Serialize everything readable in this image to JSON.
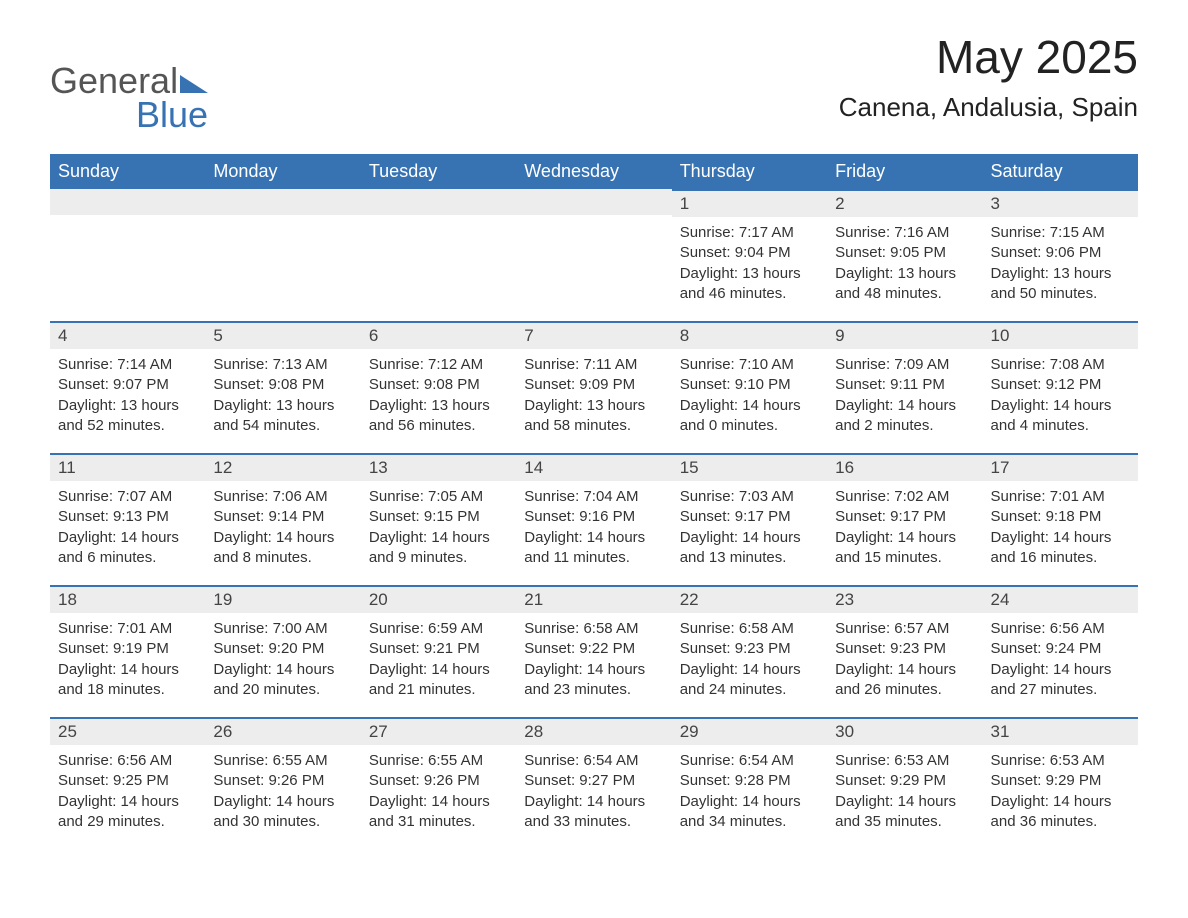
{
  "brand": {
    "word1": "General",
    "word2": "Blue"
  },
  "title": "May 2025",
  "location": "Canena, Andalusia, Spain",
  "colors": {
    "primary": "#3773b3",
    "header_text": "#ffffff",
    "day_bg": "#ededed",
    "body": "#333333"
  },
  "weekdays": [
    "Sunday",
    "Monday",
    "Tuesday",
    "Wednesday",
    "Thursday",
    "Friday",
    "Saturday"
  ],
  "labels": {
    "sunrise": "Sunrise:",
    "sunset": "Sunset:",
    "daylight": "Daylight:"
  },
  "weeks": [
    [
      {
        "blank": true
      },
      {
        "blank": true
      },
      {
        "blank": true
      },
      {
        "blank": true
      },
      {
        "day": "1",
        "sunrise": "7:17 AM",
        "sunset": "9:04 PM",
        "daylight": "13 hours and 46 minutes."
      },
      {
        "day": "2",
        "sunrise": "7:16 AM",
        "sunset": "9:05 PM",
        "daylight": "13 hours and 48 minutes."
      },
      {
        "day": "3",
        "sunrise": "7:15 AM",
        "sunset": "9:06 PM",
        "daylight": "13 hours and 50 minutes."
      }
    ],
    [
      {
        "day": "4",
        "sunrise": "7:14 AM",
        "sunset": "9:07 PM",
        "daylight": "13 hours and 52 minutes."
      },
      {
        "day": "5",
        "sunrise": "7:13 AM",
        "sunset": "9:08 PM",
        "daylight": "13 hours and 54 minutes."
      },
      {
        "day": "6",
        "sunrise": "7:12 AM",
        "sunset": "9:08 PM",
        "daylight": "13 hours and 56 minutes."
      },
      {
        "day": "7",
        "sunrise": "7:11 AM",
        "sunset": "9:09 PM",
        "daylight": "13 hours and 58 minutes."
      },
      {
        "day": "8",
        "sunrise": "7:10 AM",
        "sunset": "9:10 PM",
        "daylight": "14 hours and 0 minutes."
      },
      {
        "day": "9",
        "sunrise": "7:09 AM",
        "sunset": "9:11 PM",
        "daylight": "14 hours and 2 minutes."
      },
      {
        "day": "10",
        "sunrise": "7:08 AM",
        "sunset": "9:12 PM",
        "daylight": "14 hours and 4 minutes."
      }
    ],
    [
      {
        "day": "11",
        "sunrise": "7:07 AM",
        "sunset": "9:13 PM",
        "daylight": "14 hours and 6 minutes."
      },
      {
        "day": "12",
        "sunrise": "7:06 AM",
        "sunset": "9:14 PM",
        "daylight": "14 hours and 8 minutes."
      },
      {
        "day": "13",
        "sunrise": "7:05 AM",
        "sunset": "9:15 PM",
        "daylight": "14 hours and 9 minutes."
      },
      {
        "day": "14",
        "sunrise": "7:04 AM",
        "sunset": "9:16 PM",
        "daylight": "14 hours and 11 minutes."
      },
      {
        "day": "15",
        "sunrise": "7:03 AM",
        "sunset": "9:17 PM",
        "daylight": "14 hours and 13 minutes."
      },
      {
        "day": "16",
        "sunrise": "7:02 AM",
        "sunset": "9:17 PM",
        "daylight": "14 hours and 15 minutes."
      },
      {
        "day": "17",
        "sunrise": "7:01 AM",
        "sunset": "9:18 PM",
        "daylight": "14 hours and 16 minutes."
      }
    ],
    [
      {
        "day": "18",
        "sunrise": "7:01 AM",
        "sunset": "9:19 PM",
        "daylight": "14 hours and 18 minutes."
      },
      {
        "day": "19",
        "sunrise": "7:00 AM",
        "sunset": "9:20 PM",
        "daylight": "14 hours and 20 minutes."
      },
      {
        "day": "20",
        "sunrise": "6:59 AM",
        "sunset": "9:21 PM",
        "daylight": "14 hours and 21 minutes."
      },
      {
        "day": "21",
        "sunrise": "6:58 AM",
        "sunset": "9:22 PM",
        "daylight": "14 hours and 23 minutes."
      },
      {
        "day": "22",
        "sunrise": "6:58 AM",
        "sunset": "9:23 PM",
        "daylight": "14 hours and 24 minutes."
      },
      {
        "day": "23",
        "sunrise": "6:57 AM",
        "sunset": "9:23 PM",
        "daylight": "14 hours and 26 minutes."
      },
      {
        "day": "24",
        "sunrise": "6:56 AM",
        "sunset": "9:24 PM",
        "daylight": "14 hours and 27 minutes."
      }
    ],
    [
      {
        "day": "25",
        "sunrise": "6:56 AM",
        "sunset": "9:25 PM",
        "daylight": "14 hours and 29 minutes."
      },
      {
        "day": "26",
        "sunrise": "6:55 AM",
        "sunset": "9:26 PM",
        "daylight": "14 hours and 30 minutes."
      },
      {
        "day": "27",
        "sunrise": "6:55 AM",
        "sunset": "9:26 PM",
        "daylight": "14 hours and 31 minutes."
      },
      {
        "day": "28",
        "sunrise": "6:54 AM",
        "sunset": "9:27 PM",
        "daylight": "14 hours and 33 minutes."
      },
      {
        "day": "29",
        "sunrise": "6:54 AM",
        "sunset": "9:28 PM",
        "daylight": "14 hours and 34 minutes."
      },
      {
        "day": "30",
        "sunrise": "6:53 AM",
        "sunset": "9:29 PM",
        "daylight": "14 hours and 35 minutes."
      },
      {
        "day": "31",
        "sunrise": "6:53 AM",
        "sunset": "9:29 PM",
        "daylight": "14 hours and 36 minutes."
      }
    ]
  ]
}
